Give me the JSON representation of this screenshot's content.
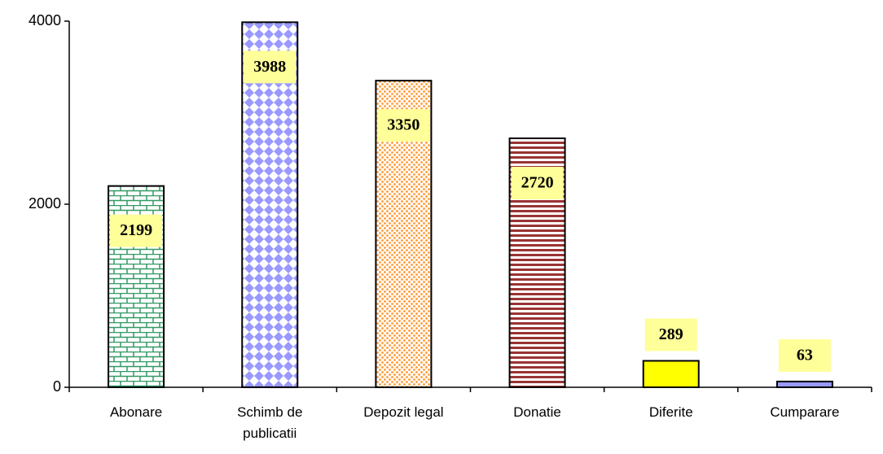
{
  "chart_data": {
    "type": "bar",
    "categories": [
      "Abonare",
      "Schimb de publicatii",
      "Depozit legal",
      "Donatie",
      "Diferite",
      "Cumparare"
    ],
    "values": [
      2199,
      3988,
      3350,
      2720,
      289,
      63
    ],
    "colors": [
      "#339966",
      "#9999ff",
      "#ff9933",
      "#993333",
      "#ffff00",
      "#9999ff"
    ],
    "ylim": [
      0,
      4000
    ],
    "yticks": [
      0,
      2000,
      4000
    ]
  }
}
